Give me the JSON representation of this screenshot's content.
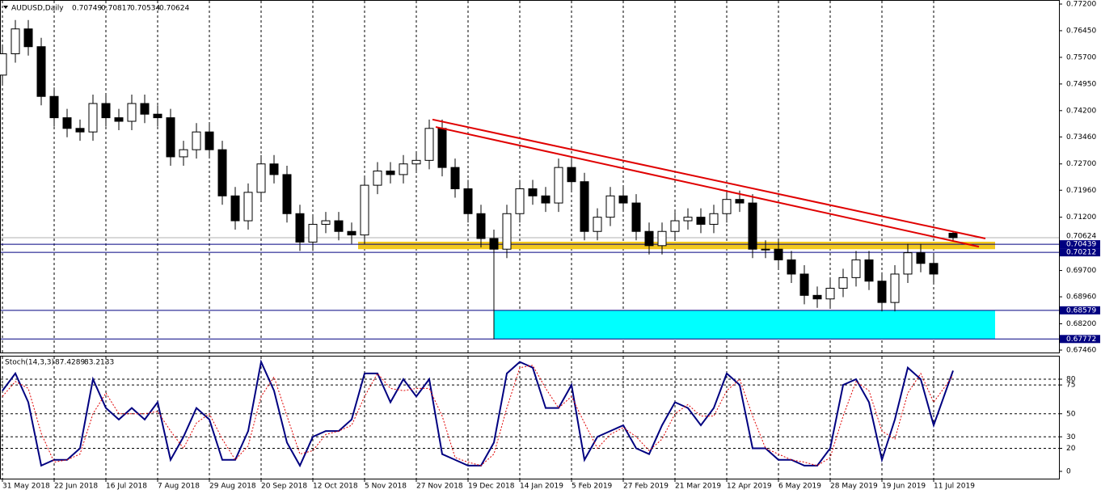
{
  "chart_data": [
    {
      "type": "candlestick",
      "title": "AUDUSD,Daily",
      "x": [
        0,
        4,
        8,
        12,
        16,
        20,
        24,
        28,
        32,
        36,
        40,
        44,
        48,
        52,
        56,
        60,
        64,
        68,
        72,
        76,
        80,
        84,
        88,
        92,
        96,
        100,
        104,
        108,
        112,
        116,
        120,
        124,
        128,
        132,
        136,
        140,
        144,
        148,
        152,
        156,
        160,
        164,
        168,
        172,
        176,
        180,
        184,
        188,
        192,
        196,
        200,
        204,
        208,
        212,
        216,
        220,
        224,
        228,
        232,
        236,
        240,
        244,
        248,
        252,
        256,
        260,
        264,
        268,
        272,
        276,
        280,
        284,
        288,
        294
      ],
      "open": [
        0.752,
        0.758,
        0.765,
        0.76,
        0.746,
        0.74,
        0.737,
        0.736,
        0.744,
        0.74,
        0.739,
        0.744,
        0.741,
        0.74,
        0.729,
        0.731,
        0.736,
        0.731,
        0.718,
        0.711,
        0.719,
        0.727,
        0.724,
        0.713,
        0.705,
        0.71,
        0.711,
        0.708,
        0.707,
        0.721,
        0.725,
        0.724,
        0.727,
        0.728,
        0.737,
        0.726,
        0.72,
        0.713,
        0.706,
        0.703,
        0.713,
        0.72,
        0.718,
        0.716,
        0.726,
        0.722,
        0.708,
        0.712,
        0.718,
        0.716,
        0.708,
        0.704,
        0.708,
        0.711,
        0.712,
        0.71,
        0.713,
        0.717,
        0.716,
        0.703,
        0.703,
        0.7,
        0.696,
        0.69,
        0.689,
        0.692,
        0.695,
        0.7,
        0.694,
        0.688,
        0.696,
        0.702,
        0.699,
        0.70749
      ],
      "high": [
        0.7605,
        0.7675,
        0.7675,
        0.7625,
        0.7485,
        0.7425,
        0.7395,
        0.7465,
        0.7465,
        0.7425,
        0.7465,
        0.7465,
        0.7435,
        0.7425,
        0.7335,
        0.7385,
        0.7385,
        0.7335,
        0.7205,
        0.7215,
        0.7295,
        0.7295,
        0.7265,
        0.7155,
        0.7125,
        0.7135,
        0.7135,
        0.7105,
        0.7235,
        0.7275,
        0.7275,
        0.7295,
        0.7305,
        0.7395,
        0.7395,
        0.7285,
        0.7225,
        0.7155,
        0.7085,
        0.7155,
        0.7225,
        0.7225,
        0.7205,
        0.7285,
        0.7285,
        0.7245,
        0.7145,
        0.7205,
        0.7205,
        0.7185,
        0.7105,
        0.7105,
        0.7135,
        0.7145,
        0.7145,
        0.7155,
        0.7195,
        0.7195,
        0.7185,
        0.7055,
        0.7055,
        0.7025,
        0.6985,
        0.6925,
        0.6945,
        0.6975,
        0.7025,
        0.7025,
        0.6965,
        0.6985,
        0.7045,
        0.7045,
        0.7015,
        0.70817
      ],
      "low": [
        0.7495,
        0.7555,
        0.7575,
        0.7435,
        0.7375,
        0.7345,
        0.7335,
        0.7335,
        0.7375,
        0.7365,
        0.7365,
        0.7385,
        0.7375,
        0.7265,
        0.7265,
        0.7285,
        0.7285,
        0.7155,
        0.7085,
        0.7085,
        0.7165,
        0.7215,
        0.7105,
        0.7025,
        0.7025,
        0.7075,
        0.7055,
        0.7045,
        0.7045,
        0.7185,
        0.7215,
        0.7215,
        0.7245,
        0.7255,
        0.7235,
        0.7175,
        0.7105,
        0.7035,
        0.6777,
        0.7005,
        0.7105,
        0.7155,
        0.7135,
        0.7135,
        0.7195,
        0.7055,
        0.7055,
        0.7095,
        0.7135,
        0.7055,
        0.7015,
        0.7015,
        0.7055,
        0.7085,
        0.7075,
        0.7075,
        0.7105,
        0.7135,
        0.7005,
        0.7005,
        0.6975,
        0.6935,
        0.6875,
        0.6865,
        0.6865,
        0.6895,
        0.6925,
        0.6915,
        0.6855,
        0.6855,
        0.6935,
        0.6965,
        0.6935,
        0.70534
      ],
      "close": [
        0.758,
        0.765,
        0.76,
        0.746,
        0.74,
        0.737,
        0.736,
        0.744,
        0.74,
        0.739,
        0.744,
        0.741,
        0.74,
        0.729,
        0.731,
        0.736,
        0.731,
        0.718,
        0.711,
        0.719,
        0.727,
        0.724,
        0.713,
        0.705,
        0.71,
        0.711,
        0.708,
        0.707,
        0.721,
        0.725,
        0.724,
        0.727,
        0.728,
        0.737,
        0.726,
        0.72,
        0.713,
        0.706,
        0.703,
        0.713,
        0.72,
        0.718,
        0.716,
        0.726,
        0.722,
        0.708,
        0.712,
        0.718,
        0.716,
        0.708,
        0.704,
        0.708,
        0.711,
        0.712,
        0.71,
        0.713,
        0.717,
        0.716,
        0.703,
        0.703,
        0.7,
        0.696,
        0.69,
        0.689,
        0.692,
        0.695,
        0.7,
        0.694,
        0.688,
        0.696,
        0.702,
        0.699,
        0.696,
        0.70624
      ],
      "xlim": [
        -0.75,
        326.75
      ],
      "xticks": [
        {
          "value": 0,
          "label": "31 May 2018"
        },
        {
          "value": 16,
          "label": "22 Jun 2018"
        },
        {
          "value": 32,
          "label": "16 Jul 2018"
        },
        {
          "value": 48,
          "label": "7 Aug 2018"
        },
        {
          "value": 64,
          "label": "29 Aug 2018"
        },
        {
          "value": 80,
          "label": "20 Sep 2018"
        },
        {
          "value": 96,
          "label": "12 Oct 2018"
        },
        {
          "value": 112,
          "label": "5 Nov 2018"
        },
        {
          "value": 128,
          "label": "27 Nov 2018"
        },
        {
          "value": 144,
          "label": "19 Dec 2018"
        },
        {
          "value": 160,
          "label": "14 Jan 2019"
        },
        {
          "value": 176,
          "label": "5 Feb 2019"
        },
        {
          "value": 192,
          "label": "27 Feb 2019"
        },
        {
          "value": 208,
          "label": "21 Mar 2019"
        },
        {
          "value": 224,
          "label": "12 Apr 2019"
        },
        {
          "value": 240,
          "label": "6 May 2019"
        },
        {
          "value": 256,
          "label": "28 May 2019"
        },
        {
          "value": 272,
          "label": "19 Jun 2019"
        },
        {
          "value": 288,
          "label": "11 Jul 2019"
        }
      ],
      "ylim": [
        0.6746,
        0.772
      ],
      "yticks": [
        {
          "value": 0.772,
          "label": "0.77200"
        },
        {
          "value": 0.7645,
          "label": "0.76450"
        },
        {
          "value": 0.757,
          "label": "0.75700"
        },
        {
          "value": 0.7495,
          "label": "0.74950"
        },
        {
          "value": 0.742,
          "label": "0.74200"
        },
        {
          "value": 0.7346,
          "label": "0.73460"
        },
        {
          "value": 0.727,
          "label": "0.72700"
        },
        {
          "value": 0.7196,
          "label": "0.71960"
        },
        {
          "value": 0.712,
          "label": "0.71200"
        },
        {
          "value": 0.697,
          "label": "0.69700"
        },
        {
          "value": 0.6896,
          "label": "0.68960"
        },
        {
          "value": 0.682,
          "label": "0.68200"
        },
        {
          "value": 0.6746,
          "label": "0.67460"
        }
      ],
      "levels": [
        0.70439,
        0.70212,
        0.68579,
        0.67772
      ],
      "zones": [
        {
          "x": [
            110,
            307
          ],
          "y": [
            0.703,
            0.7051
          ],
          "color": "#f2c81e"
        },
        {
          "x": [
            152,
            307
          ],
          "y": [
            0.67772,
            0.68579
          ],
          "color": "#00ffff"
        }
      ],
      "trendlines": [
        {
          "x": [
            133,
            304
          ],
          "y": [
            0.7395,
            0.706
          ]
        },
        {
          "x": [
            134,
            302
          ],
          "y": [
            0.7374,
            0.7037
          ]
        }
      ],
      "trendline_color": "#e00000",
      "level_color": "#000080",
      "grid": true
    },
    {
      "type": "line",
      "title": "Stoch(14,3,3)",
      "x": [
        0,
        4,
        8,
        12,
        16,
        20,
        24,
        28,
        32,
        36,
        40,
        44,
        48,
        52,
        56,
        60,
        64,
        68,
        72,
        76,
        80,
        84,
        88,
        92,
        96,
        100,
        104,
        108,
        112,
        116,
        120,
        124,
        128,
        132,
        136,
        140,
        144,
        148,
        152,
        156,
        160,
        164,
        168,
        172,
        176,
        180,
        184,
        188,
        192,
        196,
        200,
        204,
        208,
        212,
        216,
        220,
        224,
        228,
        232,
        236,
        240,
        244,
        248,
        252,
        256,
        260,
        264,
        268,
        272,
        276,
        280,
        284,
        288,
        294
      ],
      "series": [
        {
          "color": "#000080",
          "values": [
            70,
            85,
            60,
            5,
            10,
            10,
            20,
            80,
            55,
            45,
            55,
            45,
            60,
            10,
            30,
            55,
            45,
            10,
            10,
            35,
            95,
            70,
            25,
            5,
            30,
            35,
            35,
            45,
            85,
            85,
            60,
            80,
            65,
            80,
            15,
            10,
            5,
            5,
            25,
            85,
            95,
            90,
            55,
            55,
            75,
            10,
            30,
            35,
            40,
            20,
            15,
            40,
            60,
            55,
            40,
            55,
            85,
            75,
            20,
            20,
            10,
            10,
            5,
            5,
            20,
            75,
            80,
            60,
            10,
            45,
            90,
            80,
            40,
            87.4289
          ]
        },
        {
          "color": "#e00000",
          "values": [
            65,
            78,
            72,
            33,
            8,
            10,
            15,
            50,
            68,
            50,
            50,
            50,
            52,
            35,
            20,
            42,
            50,
            28,
            10,
            22,
            65,
            82,
            48,
            15,
            18,
            32,
            35,
            40,
            65,
            85,
            72,
            70,
            72,
            72,
            48,
            12,
            8,
            5,
            15,
            55,
            90,
            92,
            72,
            55,
            65,
            42,
            20,
            32,
            38,
            30,
            18,
            28,
            50,
            58,
            48,
            48,
            70,
            80,
            48,
            20,
            15,
            10,
            8,
            5,
            12,
            48,
            78,
            70,
            35,
            28,
            68,
            85,
            60,
            83.2133
          ]
        }
      ],
      "xlim": [
        -0.75,
        326.75
      ],
      "ylim": [
        0,
        100
      ],
      "yticks": [
        0,
        20,
        30,
        50,
        75,
        80
      ],
      "levels": [
        20,
        30,
        50,
        75,
        80
      ]
    }
  ]
}
